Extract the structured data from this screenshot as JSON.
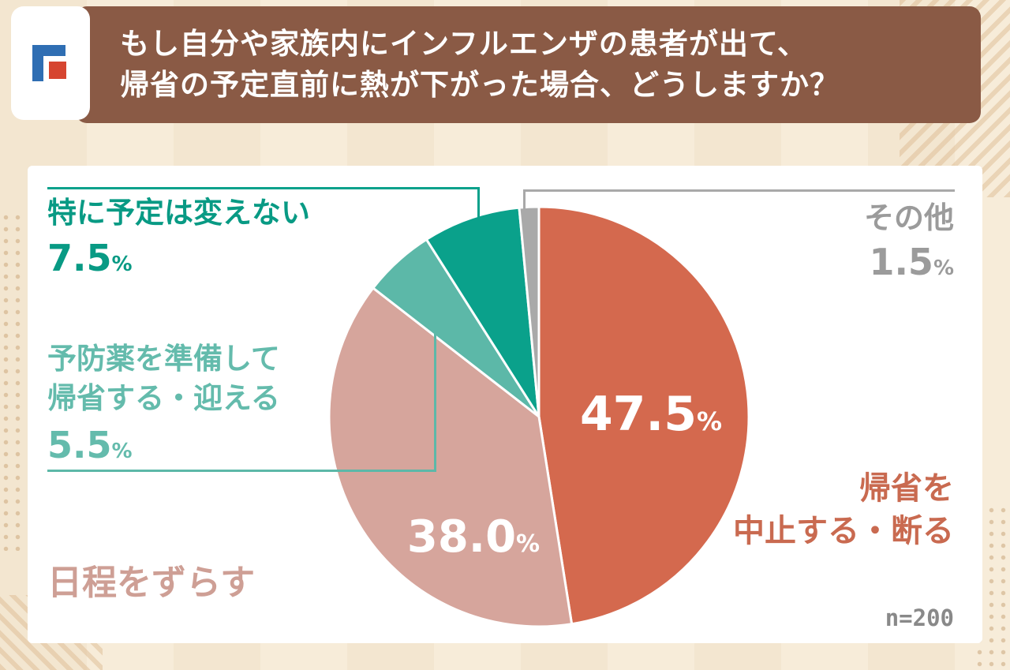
{
  "header": {
    "title_lines": [
      "もし自分や家族内にインフルエンザの患者が出て、",
      "帰省の予定直前に熱が下がった場合、どうしますか？"
    ]
  },
  "theme": {
    "page_bg": "#f7ecd9",
    "header_bg": "#8a5a45",
    "card_bg": "#ffffff",
    "logo_blue": "#2f6eb3",
    "logo_red": "#d64530"
  },
  "chart_data": {
    "type": "pie",
    "direction": "clockwise",
    "start_angle_deg": 0,
    "unit": "%",
    "n_label": "n=200",
    "slice_border_color": "#ffffff",
    "segments": [
      {
        "label": "帰省を中止する・断る",
        "label_lines": [
          "帰省を",
          "中止する・断る"
        ],
        "value": 47.5,
        "percent_label": "47.5",
        "color": "#d4694e",
        "label_color": "#c96a50"
      },
      {
        "label": "日程をずらす",
        "value": 38.0,
        "percent_label": "38.0",
        "color": "#d6a59c",
        "label_color": "#ce9f95"
      },
      {
        "label": "予防薬を準備して帰省する・迎える",
        "label_lines": [
          "予防薬を準備して",
          "帰省する・迎える"
        ],
        "value": 5.5,
        "percent_label": "5.5",
        "color": "#5cb8a8",
        "label_color": "#64bbac"
      },
      {
        "label": "特に予定は変えない",
        "value": 7.5,
        "percent_label": "7.5",
        "color": "#0aa18b",
        "label_color": "#089a84"
      },
      {
        "label": "その他",
        "value": 1.5,
        "percent_label": "1.5",
        "color": "#a9a9a9",
        "label_color": "#9b9b9b"
      }
    ]
  }
}
